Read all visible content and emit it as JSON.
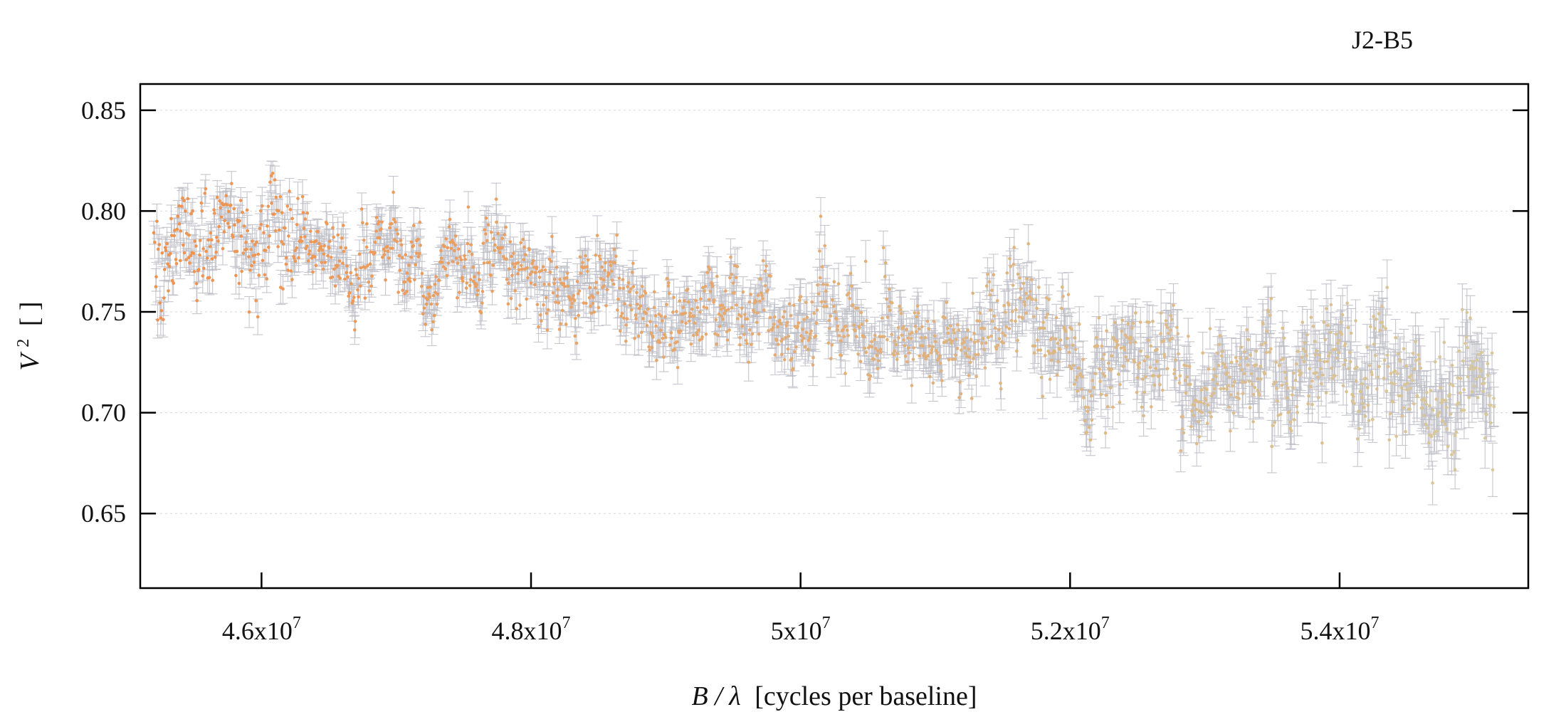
{
  "chart_data": {
    "type": "scatter",
    "title": "J2-B5",
    "xlabel_var": "B / λ",
    "xlabel_rest": "[cycles per baseline]",
    "ylabel_var": "V",
    "ylabel_sup": "2",
    "ylabel_rest": "[ ]",
    "xlim": [
      45100000,
      55400000
    ],
    "ylim": [
      0.613,
      0.863
    ],
    "x_ticks": [
      {
        "value": 46000000,
        "mant": "4.6x10",
        "exp": "7"
      },
      {
        "value": 48000000,
        "mant": "4.8x10",
        "exp": "7"
      },
      {
        "value": 50000000,
        "mant": "5x10",
        "exp": "7"
      },
      {
        "value": 52000000,
        "mant": "5.2x10",
        "exp": "7"
      },
      {
        "value": 54000000,
        "mant": "5.4x10",
        "exp": "7"
      }
    ],
    "y_ticks": [
      {
        "value": 0.65,
        "label": "0.65"
      },
      {
        "value": 0.7,
        "label": "0.70"
      },
      {
        "value": 0.75,
        "label": "0.75"
      },
      {
        "value": 0.8,
        "label": "0.80"
      },
      {
        "value": 0.85,
        "label": "0.85"
      }
    ],
    "grid": true,
    "series": [
      {
        "x_start": 45200000,
        "x_end": 55150000,
        "n_points": 1800,
        "trend": [
          {
            "x": 45200000,
            "y": 0.792
          },
          {
            "x": 45600000,
            "y": 0.793
          },
          {
            "x": 46000000,
            "y": 0.795
          },
          {
            "x": 46500000,
            "y": 0.79
          },
          {
            "x": 47000000,
            "y": 0.778
          },
          {
            "x": 47500000,
            "y": 0.775
          },
          {
            "x": 48000000,
            "y": 0.764
          },
          {
            "x": 48500000,
            "y": 0.762
          },
          {
            "x": 49000000,
            "y": 0.749
          },
          {
            "x": 49500000,
            "y": 0.747
          },
          {
            "x": 50000000,
            "y": 0.745
          },
          {
            "x": 50500000,
            "y": 0.742
          },
          {
            "x": 51000000,
            "y": 0.738
          },
          {
            "x": 51500000,
            "y": 0.735
          },
          {
            "x": 52000000,
            "y": 0.727
          },
          {
            "x": 52500000,
            "y": 0.724
          },
          {
            "x": 53000000,
            "y": 0.722
          },
          {
            "x": 53500000,
            "y": 0.721
          },
          {
            "x": 54000000,
            "y": 0.716
          },
          {
            "x": 54500000,
            "y": 0.713
          },
          {
            "x": 55150000,
            "y": 0.712
          }
        ],
        "scatter": [
          {
            "x": 45200000,
            "y": 0.016
          },
          {
            "x": 47000000,
            "y": 0.01
          },
          {
            "x": 50000000,
            "y": 0.012
          },
          {
            "x": 52500000,
            "y": 0.014
          },
          {
            "x": 55150000,
            "y": 0.017
          }
        ],
        "error": [
          {
            "x": 45200000,
            "y": 0.007
          },
          {
            "x": 50000000,
            "y": 0.008
          },
          {
            "x": 52500000,
            "y": 0.009
          },
          {
            "x": 55150000,
            "y": 0.012
          }
        ],
        "point_color_start": "#f0924e",
        "point_color_end": "#d8c89a",
        "errorbar_color": "#bcbcc6"
      }
    ]
  }
}
